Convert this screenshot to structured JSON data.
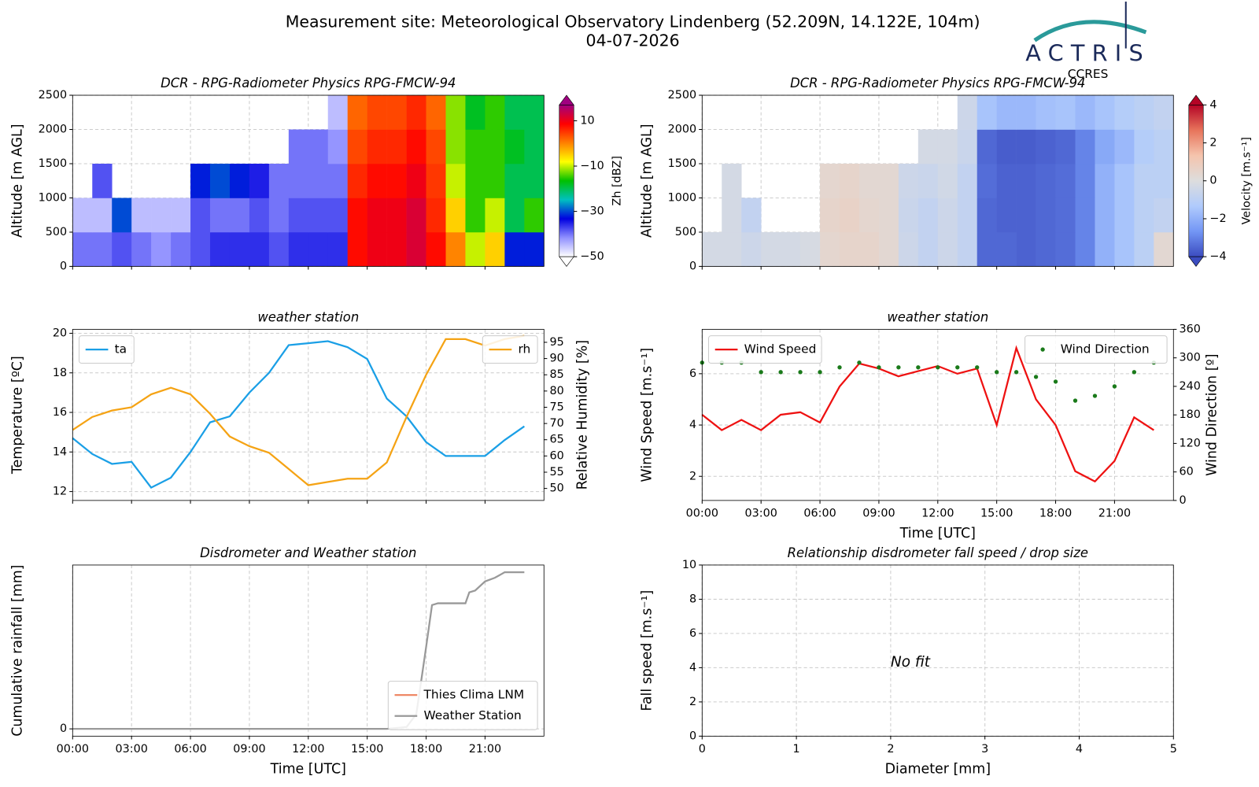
{
  "title": "Measurement site: Meteorological Observatory Lindenberg (52.209N, 14.122E, 104m)",
  "subtitle": "04-07-2026",
  "logo": {
    "name": "ACTRIS",
    "subtitle": "CCRES"
  },
  "chart_data": [
    {
      "type": "heatmap",
      "title": "DCR - RPG-Radiometer Physics RPG-FMCW-94",
      "ylabel": "Altitude [m AGL]",
      "colorbar_label": "Zh [dBZ]",
      "x": [
        0,
        1,
        2,
        3,
        4,
        5,
        6,
        7,
        8,
        9,
        10,
        11,
        12,
        13,
        14,
        15,
        16,
        17,
        18,
        19,
        20,
        21,
        22,
        23,
        24
      ],
      "y": [
        0,
        500,
        1000,
        1500,
        2000,
        2500
      ],
      "z": [
        [
          -40,
          -40,
          -38,
          -40,
          -42,
          -40,
          -38,
          -36,
          -36,
          -36,
          -38,
          -36,
          -36,
          -36,
          8,
          10,
          10,
          12,
          8,
          0,
          -10,
          -5,
          -32,
          -32
        ],
        [
          -45,
          -45,
          -30,
          -45,
          -45,
          -45,
          -38,
          -40,
          -40,
          -38,
          -40,
          -38,
          -38,
          -38,
          8,
          10,
          10,
          12,
          6,
          -5,
          -15,
          -10,
          -20,
          -15
        ],
        [
          null,
          -38,
          null,
          null,
          null,
          null,
          -32,
          -30,
          -32,
          -35,
          -40,
          -40,
          -40,
          -40,
          6,
          8,
          8,
          10,
          5,
          -10,
          -15,
          -15,
          -20,
          -20
        ],
        [
          null,
          null,
          null,
          null,
          null,
          null,
          null,
          null,
          null,
          null,
          null,
          -40,
          -40,
          -42,
          4,
          6,
          6,
          8,
          4,
          -12,
          -15,
          -15,
          -18,
          -20
        ],
        [
          null,
          null,
          null,
          null,
          null,
          null,
          null,
          null,
          null,
          null,
          null,
          null,
          null,
          -45,
          2,
          4,
          4,
          6,
          2,
          -12,
          -18,
          -15,
          -20,
          -20
        ]
      ],
      "xlim": [
        0,
        24
      ],
      "ylim": [
        0,
        2500
      ],
      "xticks": [
        0,
        3,
        6,
        9,
        12,
        15,
        18,
        21
      ],
      "xticklabels": false,
      "yticks": [
        0,
        500,
        1000,
        1500,
        2000,
        2500
      ],
      "grid": true,
      "clim": [
        -50,
        17
      ],
      "cticks": [
        {
          "value": -50,
          "label": "−50"
        },
        {
          "value": -30,
          "label": "−30"
        },
        {
          "value": -10,
          "label": "−10"
        },
        10
      ],
      "colormap": [
        "#ffffff",
        "#9090ff",
        "#0000e0",
        "#00c0c0",
        "#00c000",
        "#ffff00",
        "#ff8000",
        "#ff0000",
        "#a00080"
      ]
    },
    {
      "type": "heatmap",
      "title": "DCR - RPG-Radiometer Physics RPG-FMCW-94",
      "ylabel": "Altitude [m AGL]",
      "colorbar_label": "Velocity [m.s⁻¹]",
      "x": [
        0,
        1,
        2,
        3,
        4,
        5,
        6,
        7,
        8,
        9,
        10,
        11,
        12,
        13,
        14,
        15,
        16,
        17,
        18,
        19,
        20,
        21,
        22,
        23,
        24
      ],
      "y": [
        0,
        500,
        1000,
        1500,
        2000,
        2500
      ],
      "z": [
        [
          -0.3,
          -0.3,
          -0.5,
          -0.3,
          -0.3,
          -0.2,
          0.4,
          0.5,
          0.5,
          0.3,
          -0.5,
          -0.8,
          -0.5,
          -0.8,
          -3.5,
          -3.5,
          -3.6,
          -3.5,
          -3.4,
          -3.0,
          -2.0,
          -1.5,
          -1.0,
          0.3
        ],
        [
          null,
          -0.3,
          -0.8,
          null,
          null,
          null,
          0.5,
          0.6,
          0.4,
          0.3,
          -0.6,
          -0.8,
          -0.5,
          -0.8,
          -3.5,
          -3.6,
          -3.6,
          -3.5,
          -3.4,
          -3.0,
          -2.0,
          -1.5,
          -1.0,
          -0.8
        ],
        [
          null,
          -0.3,
          null,
          null,
          null,
          null,
          0.4,
          0.5,
          0.3,
          0.3,
          -0.5,
          -0.6,
          -0.4,
          -0.8,
          -3.4,
          -3.6,
          -3.6,
          -3.5,
          -3.4,
          -3.0,
          -2.0,
          -1.5,
          -1.0,
          -1.0
        ],
        [
          null,
          null,
          null,
          null,
          null,
          null,
          null,
          null,
          null,
          null,
          null,
          -0.3,
          -0.3,
          -0.6,
          -3.5,
          -3.7,
          -3.7,
          -3.6,
          -3.5,
          -3.0,
          -2.2,
          -1.8,
          -1.2,
          -1.0
        ],
        [
          null,
          null,
          null,
          null,
          null,
          null,
          null,
          null,
          null,
          null,
          null,
          null,
          null,
          -0.5,
          -1.5,
          -1.8,
          -1.8,
          -1.6,
          -1.5,
          -1.8,
          -1.5,
          -1.2,
          -1.0,
          -0.8
        ]
      ],
      "xlim": [
        0,
        24
      ],
      "ylim": [
        0,
        2500
      ],
      "xticks": [
        0,
        3,
        6,
        9,
        12,
        15,
        18,
        21
      ],
      "xticklabels": false,
      "yticks": [
        0,
        500,
        1000,
        1500,
        2000,
        2500
      ],
      "grid": true,
      "clim": [
        -4,
        4
      ],
      "cticks": [
        {
          "value": -4,
          "label": "−4"
        },
        {
          "value": -2,
          "label": "−2"
        },
        0,
        2,
        4
      ],
      "colormap": [
        "#3b4cc0",
        "#7396f5",
        "#b0cbfc",
        "#dddddd",
        "#f5c4ad",
        "#e7745b",
        "#b40426"
      ]
    },
    {
      "type": "line",
      "title": "weather station",
      "ylabel": "Temperature [ºC]",
      "y2label": "Relative Humidity [%]",
      "x": [
        0,
        1,
        2,
        3,
        4,
        5,
        6,
        7,
        8,
        9,
        10,
        11,
        12,
        13,
        14,
        15,
        16,
        17,
        18,
        19,
        20,
        21,
        22,
        23
      ],
      "series": [
        {
          "name": "ta",
          "color": "#1a9fe6",
          "legend": "upper left",
          "values": [
            14.7,
            13.9,
            13.4,
            13.5,
            12.2,
            12.7,
            14.0,
            15.5,
            15.8,
            17.0,
            18.0,
            19.4,
            19.5,
            19.6,
            19.3,
            18.7,
            16.7,
            15.8,
            14.5,
            13.8,
            13.8,
            13.8,
            14.6,
            15.3
          ]
        },
        {
          "name": "rh",
          "color": "#f5a314",
          "legend": "upper right",
          "axis": "y2",
          "values": [
            68,
            72,
            74,
            75,
            79,
            81,
            79,
            73,
            66,
            63,
            61,
            56,
            51,
            52,
            53,
            53,
            58,
            72,
            85,
            96,
            96,
            94,
            96,
            97
          ]
        }
      ],
      "xlim": [
        0,
        24
      ],
      "ylim": [
        11.55,
        20.2
      ],
      "y2lim": [
        46.3,
        99
      ],
      "xticks": [
        0,
        3,
        6,
        9,
        12,
        15,
        18,
        21
      ],
      "xticklabels": false,
      "yticks": [
        12,
        14,
        16,
        18,
        20
      ],
      "y2ticks": [
        50,
        55,
        60,
        65,
        70,
        75,
        80,
        85,
        90,
        95
      ],
      "grid": true
    },
    {
      "type": "line",
      "title": "weather station",
      "ylabel": "Wind Speed [m.s⁻¹]",
      "y2label": "Wind Direction [º]",
      "xlabel": "Time [UTC]",
      "x": [
        0,
        1,
        2,
        3,
        4,
        5,
        6,
        7,
        8,
        9,
        10,
        11,
        12,
        13,
        14,
        15,
        16,
        17,
        18,
        19,
        20,
        21,
        22,
        23
      ],
      "series": [
        {
          "name": "Wind Speed",
          "color": "#ee1111",
          "legend": "upper left",
          "values": [
            4.4,
            3.8,
            4.2,
            3.8,
            4.4,
            4.5,
            4.1,
            5.5,
            6.4,
            6.2,
            5.9,
            6.1,
            6.3,
            6.0,
            6.2,
            4.0,
            7.0,
            5.0,
            4.0,
            2.2,
            1.8,
            2.6,
            4.3,
            3.8
          ]
        },
        {
          "name": "Wind Direction",
          "color": "#1a7a1a",
          "legend": "upper right",
          "axis": "y2",
          "type": "scatter",
          "values": [
            290,
            290,
            290,
            270,
            270,
            270,
            270,
            280,
            290,
            280,
            280,
            280,
            280,
            280,
            280,
            270,
            270,
            260,
            250,
            210,
            220,
            240,
            270,
            290
          ]
        }
      ],
      "xlim": [
        0,
        24
      ],
      "ylim": [
        1.06,
        7.73
      ],
      "y2lim": [
        0,
        360
      ],
      "xticks": [
        {
          "value": 0,
          "label": "00:00"
        },
        {
          "value": 3,
          "label": "03:00"
        },
        {
          "value": 6,
          "label": "06:00"
        },
        {
          "value": 9,
          "label": "09:00"
        },
        {
          "value": 12,
          "label": "12:00"
        },
        {
          "value": 15,
          "label": "15:00"
        },
        {
          "value": 18,
          "label": "18:00"
        },
        {
          "value": 21,
          "label": "21:00"
        }
      ],
      "yticks": [
        2,
        4,
        6
      ],
      "y2ticks": [
        0,
        60,
        120,
        180,
        240,
        300,
        360
      ],
      "grid": true
    },
    {
      "type": "line",
      "title": "Disdrometer and Weather station",
      "ylabel": "Cumulative rainfall [mm]",
      "xlabel": "Time [UTC]",
      "series": [
        {
          "name": "Thies Clima LNM",
          "color": "#ee8866",
          "legend": "lower right",
          "x": [],
          "values": []
        },
        {
          "name": "Weather Station",
          "color": "#999999",
          "legend": "lower right",
          "x": [
            0,
            16,
            17,
            17.5,
            17.8,
            18,
            18.3,
            18.6,
            19,
            20,
            20.2,
            20.5,
            21,
            21.5,
            22,
            23
          ],
          "values": [
            0,
            0,
            0.1,
            0.8,
            3,
            4.5,
            6.8,
            6.9,
            6.9,
            6.9,
            7.5,
            7.6,
            8.1,
            8.3,
            8.6,
            8.6
          ]
        }
      ],
      "xlim": [
        0,
        24
      ],
      "ylim": [
        -0.4,
        9
      ],
      "xticks": [
        {
          "value": 0,
          "label": "00:00"
        },
        {
          "value": 3,
          "label": "03:00"
        },
        {
          "value": 6,
          "label": "06:00"
        },
        {
          "value": 9,
          "label": "09:00"
        },
        {
          "value": 12,
          "label": "12:00"
        },
        {
          "value": 15,
          "label": "15:00"
        },
        {
          "value": 18,
          "label": "18:00"
        },
        {
          "value": 21,
          "label": "21:00"
        }
      ],
      "yticks": [
        0
      ],
      "grid": true
    },
    {
      "type": "scatter",
      "title": "Relationship disdrometer fall speed / drop size",
      "ylabel": "Fall speed [m.s⁻¹]",
      "xlabel": "Diameter [mm]",
      "annotation": "No fit",
      "xlim": [
        0,
        5
      ],
      "ylim": [
        0,
        10
      ],
      "xticks": [
        0,
        1,
        2,
        3,
        4,
        5
      ],
      "yticks": [
        0,
        2,
        4,
        6,
        8,
        10
      ],
      "grid": true
    }
  ]
}
